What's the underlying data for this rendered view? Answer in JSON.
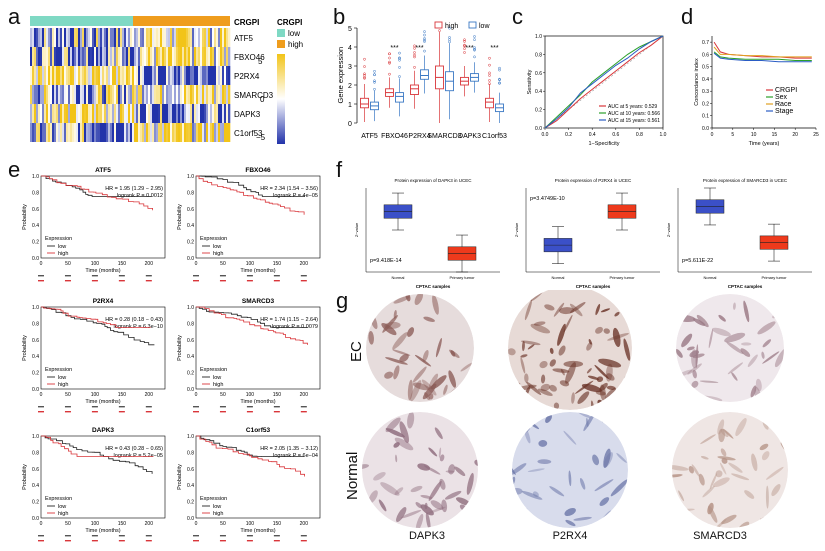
{
  "figure": {
    "panel_labels": {
      "a": "a",
      "b": "b",
      "c": "c",
      "d": "d",
      "e": "e",
      "f": "f",
      "g": "g"
    }
  },
  "heatmap": {
    "group_label": "CRGPI",
    "legend_title": "CRGPI",
    "legend_low": "low",
    "legend_high": "high",
    "genes": [
      "ATF5",
      "FBXO46",
      "P2RX4",
      "SMARCD3",
      "DAPK3",
      "C1orf53"
    ],
    "colorbar_ticks": [
      "5",
      "0",
      "−5"
    ],
    "colors": {
      "low": "#7fd9c4",
      "high": "#ef9d1d",
      "pos": "#f2c418",
      "neg": "#2233aa"
    }
  },
  "chart_data": [
    {
      "panel": "b",
      "type": "box",
      "title": "",
      "ylabel": "Gene expression",
      "categories": [
        "ATF5",
        "FBXO46",
        "P2RX4",
        "SMARCD3",
        "DAPK3",
        "C1orf53"
      ],
      "yticks": [
        "0",
        "1",
        "2",
        "3",
        "4",
        "5"
      ],
      "ylim": [
        0,
        5
      ],
      "significance": [
        "",
        "***",
        "***",
        "",
        "***",
        "***"
      ],
      "legend": [
        "high",
        "low"
      ],
      "series": [
        {
          "name": "high",
          "color": "#d9363a",
          "q": [
            [
              0.8,
              1.0,
              1.3
            ],
            [
              1.4,
              1.6,
              1.8
            ],
            [
              1.5,
              1.8,
              2.0
            ],
            [
              1.8,
              2.4,
              3.0
            ],
            [
              2.0,
              2.2,
              2.4
            ],
            [
              0.8,
              1.1,
              1.3
            ]
          ]
        },
        {
          "name": "low",
          "color": "#3a78c4",
          "q": [
            [
              0.7,
              0.9,
              1.1
            ],
            [
              1.1,
              1.4,
              1.6
            ],
            [
              2.3,
              2.5,
              2.8
            ],
            [
              1.7,
              2.2,
              2.7
            ],
            [
              2.2,
              2.4,
              2.6
            ],
            [
              0.6,
              0.8,
              1.0
            ]
          ]
        }
      ]
    },
    {
      "panel": "c",
      "type": "line",
      "xlabel": "1−Specificity",
      "ylabel": "Sensitivity",
      "xticks": [
        "0.0",
        "0.2",
        "0.4",
        "0.6",
        "0.8",
        "1.0"
      ],
      "yticks": [
        "0.0",
        "0.2",
        "0.4",
        "0.6",
        "0.8",
        "1.0"
      ],
      "legend": [
        "AUC at 5 years: 0.529",
        "AUC at 10 years: 0.566",
        "AUC at 15 years: 0.561"
      ],
      "series": [
        {
          "name": "5 years",
          "color": "#d9363a",
          "x": [
            0,
            0.1,
            0.2,
            0.3,
            0.4,
            0.5,
            0.6,
            0.7,
            0.8,
            0.9,
            1
          ],
          "y": [
            0,
            0.08,
            0.2,
            0.32,
            0.42,
            0.52,
            0.62,
            0.72,
            0.82,
            0.9,
            1
          ]
        },
        {
          "name": "10 years",
          "color": "#2aa02a",
          "x": [
            0,
            0.1,
            0.2,
            0.3,
            0.4,
            0.5,
            0.6,
            0.7,
            0.8,
            0.9,
            1
          ],
          "y": [
            0,
            0.12,
            0.24,
            0.36,
            0.5,
            0.6,
            0.7,
            0.8,
            0.88,
            0.94,
            1
          ]
        },
        {
          "name": "15 years",
          "color": "#2a5cc4",
          "x": [
            0,
            0.1,
            0.2,
            0.3,
            0.4,
            0.5,
            0.6,
            0.7,
            0.8,
            0.9,
            1
          ],
          "y": [
            0,
            0.1,
            0.22,
            0.38,
            0.48,
            0.58,
            0.68,
            0.76,
            0.86,
            0.94,
            1
          ]
        }
      ]
    },
    {
      "panel": "d",
      "type": "line",
      "xlabel": "Time (years)",
      "ylabel": "Concordance index",
      "xticks": [
        "0",
        "5",
        "10",
        "15",
        "20",
        "25"
      ],
      "yticks": [
        "0.0",
        "0.1",
        "0.2",
        "0.3",
        "0.4",
        "0.5",
        "0.6",
        "0.7"
      ],
      "legend": [
        "CRGPI",
        "Sex",
        "Race",
        "Stage"
      ],
      "series": [
        {
          "name": "CRGPI",
          "color": "#d9363a",
          "x": [
            0.5,
            2,
            4,
            8,
            12,
            16,
            20,
            24
          ],
          "y": [
            0.7,
            0.62,
            0.6,
            0.59,
            0.58,
            0.58,
            0.57,
            0.57
          ]
        },
        {
          "name": "Sex",
          "color": "#2aa02a",
          "x": [
            0.5,
            2,
            4,
            8,
            12,
            16,
            20,
            24
          ],
          "y": [
            0.62,
            0.58,
            0.57,
            0.56,
            0.56,
            0.56,
            0.55,
            0.55
          ]
        },
        {
          "name": "Race",
          "color": "#e0a020",
          "x": [
            0.5,
            2,
            4,
            8,
            12,
            16,
            20,
            24
          ],
          "y": [
            0.66,
            0.6,
            0.6,
            0.59,
            0.59,
            0.58,
            0.58,
            0.58
          ]
        },
        {
          "name": "Stage",
          "color": "#2a5cc4",
          "x": [
            0.5,
            2,
            4,
            8,
            12,
            16,
            20,
            24
          ],
          "y": [
            0.61,
            0.57,
            0.56,
            0.55,
            0.55,
            0.54,
            0.54,
            0.54
          ]
        }
      ]
    }
  ],
  "km": {
    "ylabel": "Probability",
    "xlabel": "Time (months)",
    "xticks": [
      "0",
      "50",
      "100",
      "150",
      "200"
    ],
    "yticks": [
      "0.0",
      "0.2",
      "0.4",
      "0.6",
      "0.8",
      "1.0"
    ],
    "legend_title": "Expression",
    "legend_low": "low",
    "legend_high": "high",
    "plots": [
      {
        "gene": "ATF5",
        "hr": "HR = 1.95 (1.29 − 2.95)",
        "p": "logrank P = 0.0012"
      },
      {
        "gene": "FBXO46",
        "hr": "HR = 2.34 (1.54 − 3.56)",
        "p": "logrank P = 4e−05"
      },
      {
        "gene": "P2RX4",
        "hr": "HR = 0.28 (0.18 − 0.43)",
        "p": "logrank P = 6.3e−10"
      },
      {
        "gene": "SMARCD3",
        "hr": "HR = 1.74 (1.15 − 2.64)",
        "p": "logrank P = 0.0079"
      },
      {
        "gene": "DAPK3",
        "hr": "HR = 0.43 (0.28 − 0.65)",
        "p": "logrank P = 5.2e−05"
      },
      {
        "gene": "C1orf53",
        "hr": "HR = 2.05 (1.35 − 3.12)",
        "p": "logrank P = 6e−04"
      }
    ]
  },
  "protein": {
    "xlabel": "CPTAC samples",
    "ylabel": "Z−value",
    "normal_label": "Normal",
    "tumor_label": "Primary tumor",
    "plots": [
      {
        "title": "Protein expression of DAPK3 in UCEC",
        "p": "p=9.418E-14"
      },
      {
        "title": "Protein expression of P2RX4 in UCEC",
        "p": "p=3.4749E-10"
      },
      {
        "title": "Protein expression of SMARCD3 in UCEC",
        "p": "p=5.611E-22"
      }
    ]
  },
  "ihc": {
    "row_labels": [
      "EC",
      "Normal"
    ],
    "col_labels": [
      "DAPK3",
      "P2RX4",
      "SMARCD3"
    ]
  }
}
